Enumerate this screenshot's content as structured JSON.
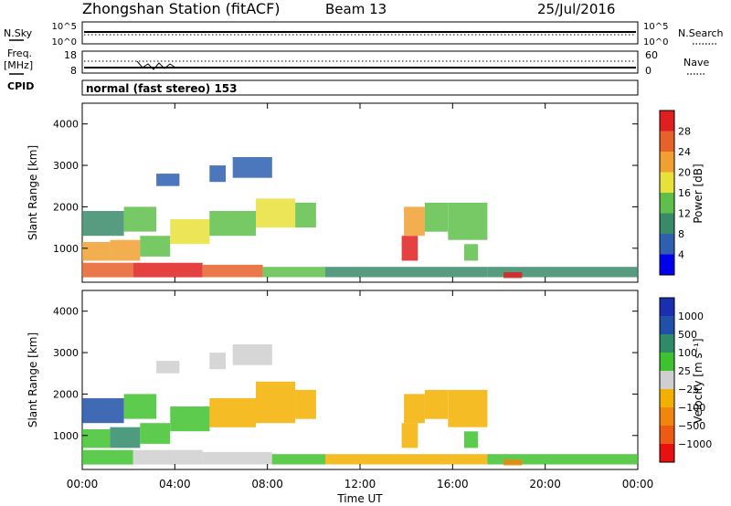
{
  "header": {
    "station": "Zhongshan Station (fitACF)",
    "beam": "Beam 13",
    "date": "25/Jul/2016"
  },
  "top_panels": {
    "nsky_label": "N.Sky",
    "nsky_ticks": [
      "10^5",
      "10^0"
    ],
    "nsearch_label": "N.Search",
    "nsearch_ticks": [
      "10^5",
      "10^0"
    ],
    "freq_label": "Freq.",
    "freq_unit": "[MHz]",
    "freq_ticks": [
      "18",
      "8"
    ],
    "nave_label": "Nave",
    "nave_ticks": [
      "60",
      "0"
    ],
    "cpid_label": "CPID",
    "cpid_value": "normal (fast stereo) 153"
  },
  "colors": {
    "power": [
      "#0000ee",
      "#2e5fb0",
      "#3a8a6a",
      "#5fbf4a",
      "#e8e13a",
      "#f0a030",
      "#e8602a",
      "#e02020"
    ],
    "velocity": [
      "#e81010",
      "#ec5a14",
      "#f0860e",
      "#f4b000",
      "#cfcfcf",
      "#3fc22f",
      "#2f8a6a",
      "#2050a8",
      "#1a2fb0"
    ]
  },
  "chart_data": [
    {
      "type": "heatmap",
      "ylabel": "Slant Range [km]",
      "xlabel": "",
      "x_range": [
        0,
        24
      ],
      "ylim": [
        180,
        4500
      ],
      "yticks": [
        "1000",
        "2000",
        "3000",
        "4000"
      ],
      "x_tick_values": [
        0,
        4,
        8,
        12,
        16,
        20,
        24
      ],
      "y_tick_values": [
        1000,
        2000,
        3000,
        4000
      ],
      "colorbar": {
        "label": "Power [dB]",
        "tick_labels": [
          "4",
          "8",
          "12",
          "16",
          "20",
          "24",
          "28"
        ],
        "range": [
          0,
          32
        ]
      },
      "regions": [
        {
          "t": [
            0.0,
            2.2
          ],
          "r": [
            300,
            650
          ],
          "v": 26
        },
        {
          "t": [
            2.2,
            5.2
          ],
          "r": [
            300,
            650
          ],
          "v": 30
        },
        {
          "t": [
            5.2,
            7.8
          ],
          "r": [
            300,
            600
          ],
          "v": 24
        },
        {
          "t": [
            7.8,
            10.5
          ],
          "r": [
            300,
            550
          ],
          "v": 14
        },
        {
          "t": [
            10.5,
            17.5
          ],
          "r": [
            300,
            550
          ],
          "v": 10
        },
        {
          "t": [
            17.5,
            24.0
          ],
          "r": [
            300,
            550
          ],
          "v": 8
        },
        {
          "t": [
            0.0,
            1.2
          ],
          "r": [
            700,
            1150
          ],
          "v": 20
        },
        {
          "t": [
            1.2,
            2.5
          ],
          "r": [
            700,
            1200
          ],
          "v": 22
        },
        {
          "t": [
            2.5,
            3.8
          ],
          "r": [
            800,
            1300
          ],
          "v": 12
        },
        {
          "t": [
            0.0,
            1.8
          ],
          "r": [
            1300,
            1900
          ],
          "v": 10
        },
        {
          "t": [
            1.8,
            3.2
          ],
          "r": [
            1400,
            2000
          ],
          "v": 14
        },
        {
          "t": [
            3.8,
            5.5
          ],
          "r": [
            1100,
            1700
          ],
          "v": 18
        },
        {
          "t": [
            5.5,
            7.5
          ],
          "r": [
            1300,
            1900
          ],
          "v": 14
        },
        {
          "t": [
            7.5,
            9.2
          ],
          "r": [
            1500,
            2200
          ],
          "v": 18
        },
        {
          "t": [
            9.2,
            10.1
          ],
          "r": [
            1500,
            2100
          ],
          "v": 14
        },
        {
          "t": [
            3.2,
            4.2
          ],
          "r": [
            2500,
            2800
          ],
          "v": 6
        },
        {
          "t": [
            5.5,
            6.2
          ],
          "r": [
            2600,
            3000
          ],
          "v": 6
        },
        {
          "t": [
            6.5,
            8.2
          ],
          "r": [
            2700,
            3200
          ],
          "v": 6
        },
        {
          "t": [
            13.8,
            14.5
          ],
          "r": [
            700,
            1300
          ],
          "v": 28
        },
        {
          "t": [
            13.9,
            14.8
          ],
          "r": [
            1300,
            2000
          ],
          "v": 22
        },
        {
          "t": [
            14.8,
            15.8
          ],
          "r": [
            1400,
            2100
          ],
          "v": 14
        },
        {
          "t": [
            15.8,
            17.5
          ],
          "r": [
            1200,
            2100
          ],
          "v": 12
        },
        {
          "t": [
            16.5,
            17.1
          ],
          "r": [
            700,
            1100
          ],
          "v": 14
        },
        {
          "t": [
            18.2,
            19.0
          ],
          "r": [
            280,
            420
          ],
          "v": 28
        }
      ]
    },
    {
      "type": "heatmap",
      "ylabel": "Slant Range [km]",
      "xlabel": "Time UT",
      "x_range": [
        0,
        24
      ],
      "ylim": [
        180,
        4500
      ],
      "yticks": [
        "1000",
        "2000",
        "3000",
        "4000"
      ],
      "x_tick_values": [
        0,
        4,
        8,
        12,
        16,
        20,
        24
      ],
      "y_tick_values": [
        1000,
        2000,
        3000,
        4000
      ],
      "xticks": [
        "00:00",
        "04:00",
        "08:00",
        "12:00",
        "16:00",
        "20:00",
        "00:00"
      ],
      "colorbar": {
        "label": "Velocity [m s⁻¹]",
        "tick_labels": [
          "−1000",
          "−500",
          "−100",
          "−25",
          "25",
          "100",
          "500",
          "1000"
        ],
        "range": [
          -1300,
          1300
        ]
      },
      "regions": [
        {
          "t": [
            0.0,
            2.2
          ],
          "r": [
            300,
            650
          ],
          "v": 300
        },
        {
          "t": [
            2.2,
            5.2
          ],
          "r": [
            300,
            650
          ],
          "v": -50
        },
        {
          "t": [
            5.2,
            8.2
          ],
          "r": [
            300,
            600
          ],
          "v": 50
        },
        {
          "t": [
            8.2,
            10.5
          ],
          "r": [
            300,
            550
          ],
          "v": 300
        },
        {
          "t": [
            10.5,
            17.5
          ],
          "r": [
            300,
            550
          ],
          "v": -200
        },
        {
          "t": [
            17.5,
            24.0
          ],
          "r": [
            300,
            550
          ],
          "v": 300
        },
        {
          "t": [
            0.0,
            1.2
          ],
          "r": [
            700,
            1150
          ],
          "v": 300
        },
        {
          "t": [
            1.2,
            2.5
          ],
          "r": [
            700,
            1200
          ],
          "v": 700
        },
        {
          "t": [
            2.5,
            3.8
          ],
          "r": [
            800,
            1300
          ],
          "v": 300
        },
        {
          "t": [
            0.0,
            1.8
          ],
          "r": [
            1300,
            1900
          ],
          "v": 800
        },
        {
          "t": [
            1.8,
            3.2
          ],
          "r": [
            1400,
            2000
          ],
          "v": 400
        },
        {
          "t": [
            3.8,
            5.5
          ],
          "r": [
            1100,
            1700
          ],
          "v": 200
        },
        {
          "t": [
            5.5,
            7.5
          ],
          "r": [
            1200,
            1900
          ],
          "v": -300
        },
        {
          "t": [
            7.5,
            9.2
          ],
          "r": [
            1300,
            2300
          ],
          "v": -300
        },
        {
          "t": [
            9.2,
            10.1
          ],
          "r": [
            1400,
            2100
          ],
          "v": -200
        },
        {
          "t": [
            3.2,
            4.2
          ],
          "r": [
            2500,
            2800
          ],
          "v": 10
        },
        {
          "t": [
            5.5,
            6.2
          ],
          "r": [
            2600,
            3000
          ],
          "v": 10
        },
        {
          "t": [
            6.5,
            8.2
          ],
          "r": [
            2700,
            3200
          ],
          "v": 10
        },
        {
          "t": [
            13.8,
            14.5
          ],
          "r": [
            700,
            1300
          ],
          "v": -300
        },
        {
          "t": [
            13.9,
            14.8
          ],
          "r": [
            1300,
            2000
          ],
          "v": -300
        },
        {
          "t": [
            14.8,
            15.8
          ],
          "r": [
            1400,
            2100
          ],
          "v": -300
        },
        {
          "t": [
            15.8,
            17.5
          ],
          "r": [
            1200,
            2100
          ],
          "v": -200
        },
        {
          "t": [
            16.5,
            17.1
          ],
          "r": [
            700,
            1100
          ],
          "v": 300
        },
        {
          "t": [
            18.2,
            19.0
          ],
          "r": [
            280,
            420
          ],
          "v": -500
        }
      ]
    }
  ]
}
